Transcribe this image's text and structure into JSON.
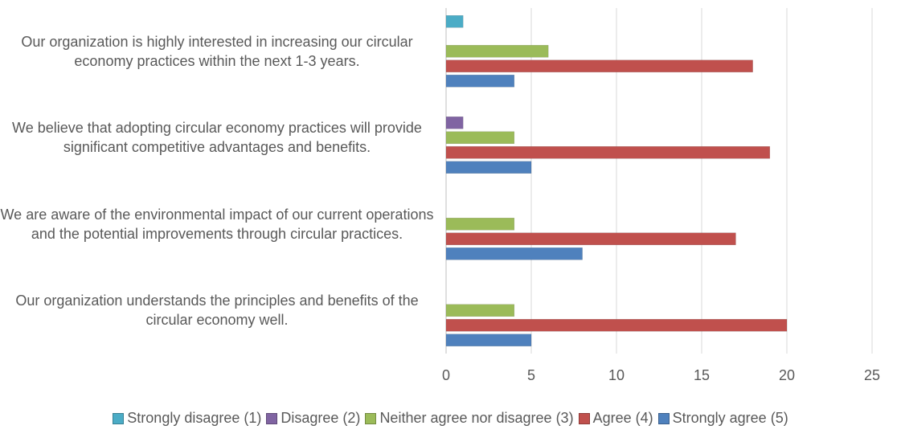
{
  "chart_data": {
    "type": "bar",
    "orientation": "horizontal",
    "categories": [
      "Our organization understands the principles and benefits of the circular economy well.",
      "We are aware of the environmental impact of our current operations and the potential improvements through circular practices.",
      "We believe that adopting circular economy practices will provide significant competitive advantages and benefits.",
      "Our organization is highly interested in increasing our circular economy practices within the next 1-3 years."
    ],
    "series": [
      {
        "name": "Strongly agree (5)",
        "color": "#4f81bd",
        "values": [
          5,
          8,
          5,
          4
        ]
      },
      {
        "name": "Agree (4)",
        "color": "#c0504d",
        "values": [
          20,
          17,
          19,
          18
        ]
      },
      {
        "name": "Neither agree nor disagree (3)",
        "color": "#9bbb59",
        "values": [
          4,
          4,
          4,
          6
        ]
      },
      {
        "name": "Disagree (2)",
        "color": "#8064a2",
        "values": [
          0,
          0,
          1,
          0
        ]
      },
      {
        "name": "Strongly disagree (1)",
        "color": "#4bacc6",
        "values": [
          0,
          0,
          0,
          1
        ]
      }
    ],
    "xlim": [
      0,
      25
    ],
    "xticks": [
      0,
      5,
      10,
      15,
      20,
      25
    ],
    "grid": true
  }
}
